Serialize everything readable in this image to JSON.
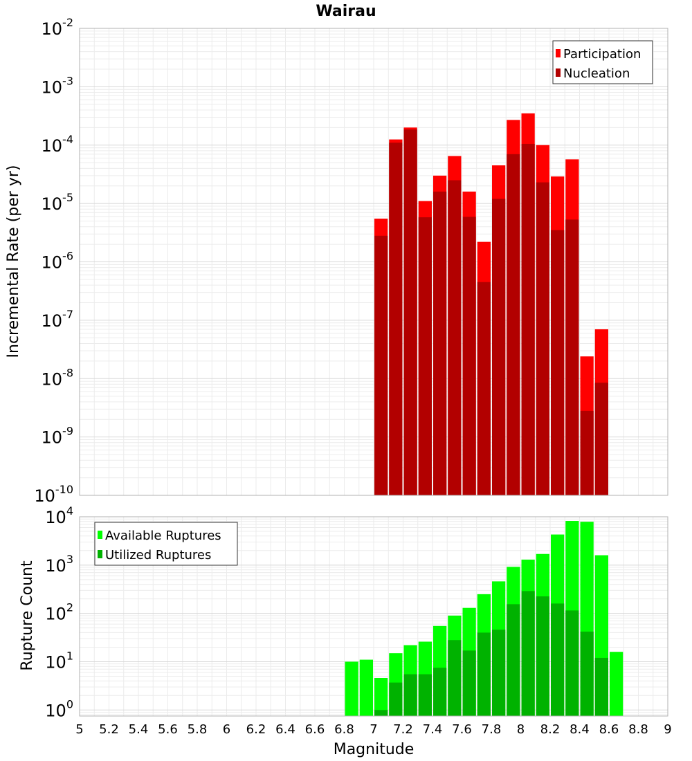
{
  "chart_data": [
    {
      "type": "bar",
      "title": "Wairau",
      "xlabel": "",
      "ylabel": "Incremental Rate (per yr)",
      "yscale": "log",
      "ylim": [
        1e-10,
        0.01
      ],
      "xlim": [
        5,
        9
      ],
      "bin_width": 0.1,
      "y_tick_labels": [
        {
          "base": "10",
          "exp": "-10"
        },
        {
          "base": "10",
          "exp": "-9"
        },
        {
          "base": "10",
          "exp": "-8"
        },
        {
          "base": "10",
          "exp": "-7"
        },
        {
          "base": "10",
          "exp": "-6"
        },
        {
          "base": "10",
          "exp": "-5"
        },
        {
          "base": "10",
          "exp": "-4"
        },
        {
          "base": "10",
          "exp": "-3"
        },
        {
          "base": "10",
          "exp": "-2"
        }
      ],
      "grid": true,
      "legend_position": "top-right",
      "x": [
        7.05,
        7.15,
        7.25,
        7.35,
        7.45,
        7.55,
        7.65,
        7.75,
        7.85,
        7.95,
        8.05,
        8.15,
        8.25,
        8.35,
        8.45,
        8.55
      ],
      "series": [
        {
          "name": "Participation",
          "color": "#ff0000",
          "values": [
            5.5e-06,
            0.000125,
            0.0002,
            1.1e-05,
            3e-05,
            6.5e-05,
            1.6e-05,
            2.2e-06,
            4.5e-05,
            0.00027,
            0.00035,
            0.0001,
            2.9e-05,
            5.7e-05,
            2.4e-08,
            7e-08
          ]
        },
        {
          "name": "Nucleation",
          "color": "#b20000",
          "values": [
            2.8e-06,
            0.00011,
            0.000185,
            5.8e-06,
            1.6e-05,
            2.5e-05,
            5.9e-06,
            4.5e-07,
            1.2e-05,
            7e-05,
            0.000105,
            2.3e-05,
            3.5e-06,
            5.3e-06,
            2.8e-09,
            8.5e-09
          ]
        }
      ]
    },
    {
      "type": "bar",
      "title": "",
      "xlabel": "Magnitude",
      "ylabel": "Rupture Count",
      "yscale": "log",
      "ylim": [
        0.75,
        10000
      ],
      "xlim": [
        5,
        9
      ],
      "bin_width": 0.1,
      "x_tick_labels": [
        "5",
        "5.2",
        "5.4",
        "5.6",
        "5.8",
        "6",
        "6.2",
        "6.4",
        "6.6",
        "6.8",
        "7",
        "7.2",
        "7.4",
        "7.6",
        "7.8",
        "8",
        "8.2",
        "8.4",
        "8.6",
        "8.8",
        "9"
      ],
      "y_tick_labels": [
        {
          "base": "10",
          "exp": "0"
        },
        {
          "base": "10",
          "exp": "1"
        },
        {
          "base": "10",
          "exp": "2"
        },
        {
          "base": "10",
          "exp": "3"
        },
        {
          "base": "10",
          "exp": "4"
        }
      ],
      "grid": true,
      "legend_position": "top-left",
      "x": [
        6.85,
        6.95,
        7.05,
        7.15,
        7.25,
        7.35,
        7.45,
        7.55,
        7.65,
        7.75,
        7.85,
        7.95,
        8.05,
        8.15,
        8.25,
        8.35,
        8.45,
        8.55,
        8.65
      ],
      "series": [
        {
          "name": "Available Ruptures",
          "color": "#00ff00",
          "values": [
            10,
            11,
            4.6,
            15,
            22,
            26,
            55,
            90,
            130,
            250,
            460,
            920,
            1300,
            1700,
            4300,
            8200,
            7900,
            1600,
            16
          ]
        },
        {
          "name": "Utilized Ruptures",
          "color": "#00b200",
          "values": [
            0,
            0,
            1,
            3.7,
            5.5,
            5.5,
            7.5,
            28,
            17,
            40,
            46,
            155,
            290,
            225,
            160,
            115,
            42,
            12,
            0
          ]
        }
      ]
    }
  ]
}
